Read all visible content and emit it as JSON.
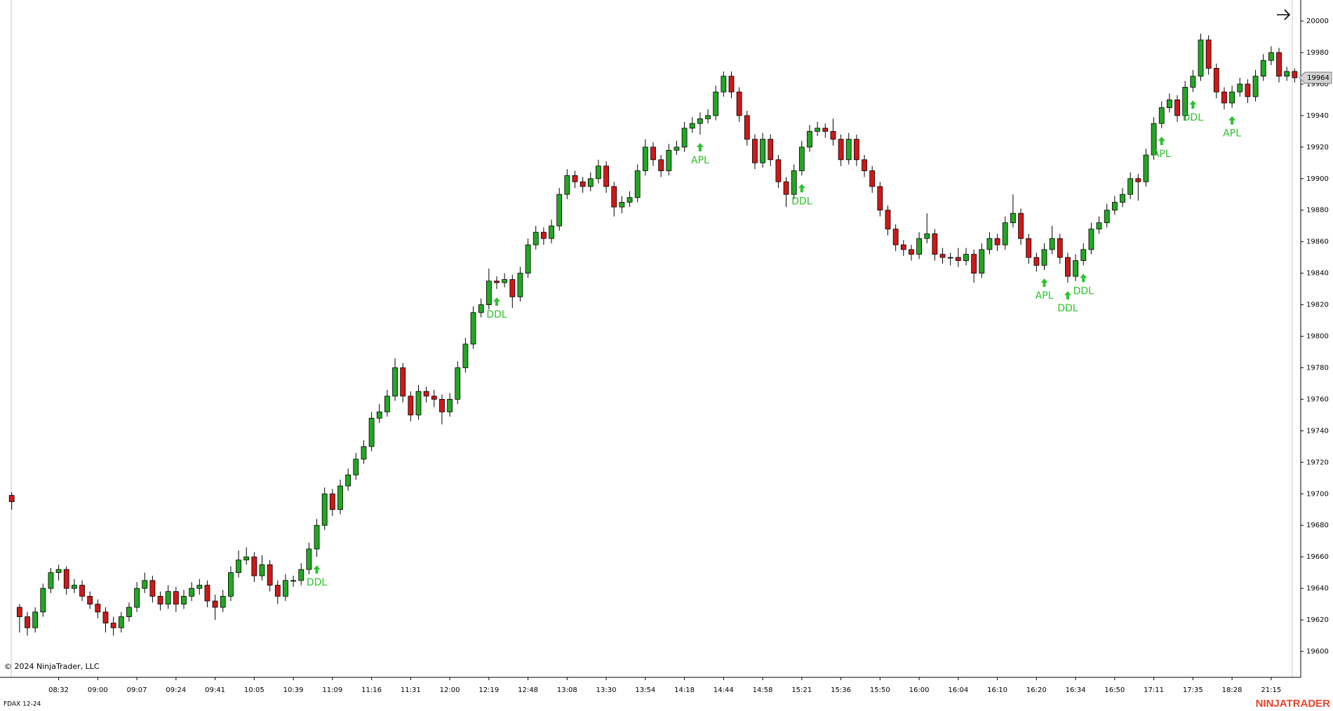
{
  "chart_data": {
    "type": "candlestick",
    "instrument": "FDAX 12-24",
    "copyright": "© 2024 NinjaTrader, LLC",
    "logo": "NINJATRADER",
    "up_color": "#22a822",
    "down_color": "#d01818",
    "signal_color": "#2ec22e",
    "ylim": [
      19590,
      20012
    ],
    "yticks": [
      19600,
      19620,
      19640,
      19660,
      19680,
      19700,
      19720,
      19740,
      19760,
      19780,
      19800,
      19820,
      19840,
      19860,
      19880,
      19900,
      19920,
      19940,
      19960,
      19980,
      20000
    ],
    "categories": [
      null,
      null,
      null,
      null,
      null,
      null,
      "08:32",
      null,
      null,
      null,
      null,
      "09:00",
      null,
      null,
      null,
      null,
      "09:07",
      null,
      null,
      null,
      null,
      "09:24",
      null,
      null,
      null,
      null,
      "09:41",
      null,
      null,
      null,
      null,
      "10:05",
      null,
      null,
      null,
      null,
      "10:39",
      null,
      null,
      null,
      null,
      "11:09",
      null,
      null,
      null,
      null,
      "11:16",
      null,
      null,
      null,
      null,
      "11:31",
      null,
      null,
      null,
      null,
      "12:00",
      null,
      null,
      null,
      null,
      "12:19",
      null,
      null,
      null,
      null,
      "12:48",
      null,
      null,
      null,
      null,
      "13:08",
      null,
      null,
      null,
      null,
      "13:30",
      null,
      null,
      null,
      null,
      "13:54",
      null,
      null,
      null,
      null,
      "14:18",
      null,
      null,
      null,
      null,
      "14:44",
      null,
      null,
      null,
      null,
      "14:58",
      null,
      null,
      null,
      null,
      "15:21",
      null,
      null,
      null,
      null,
      "15:36",
      null,
      null,
      null,
      null,
      "15:50",
      null,
      null,
      null,
      null,
      "16:00",
      null,
      null,
      null,
      null,
      "16:04",
      null,
      null,
      null,
      null,
      "16:10",
      null,
      null,
      null,
      null,
      "16:20",
      null,
      null,
      null,
      null,
      "16:34",
      null,
      null,
      null,
      null,
      "16:50",
      null,
      null,
      null,
      null,
      "17:11",
      null,
      null,
      null,
      null,
      "17:35",
      null,
      null,
      null,
      null,
      "18:28",
      null,
      null,
      null,
      null,
      "21:15",
      null,
      null,
      null
    ],
    "candles": [
      [
        19699,
        19701,
        19690,
        19695
      ],
      [
        19628,
        19630,
        19612,
        19622
      ],
      [
        19622,
        19625,
        19610,
        19615
      ],
      [
        19615,
        19628,
        19612,
        19625
      ],
      [
        19625,
        19643,
        19622,
        19640
      ],
      [
        19640,
        19653,
        19637,
        19650
      ],
      [
        19650,
        19655,
        19645,
        19652
      ],
      [
        19652,
        19654,
        19636,
        19640
      ],
      [
        19640,
        19646,
        19637,
        19642
      ],
      [
        19642,
        19645,
        19632,
        19635
      ],
      [
        19635,
        19638,
        19627,
        19630
      ],
      [
        19630,
        19633,
        19621,
        19625
      ],
      [
        19625,
        19628,
        19612,
        19618
      ],
      [
        19618,
        19622,
        19610,
        19615
      ],
      [
        19615,
        19625,
        19612,
        19622
      ],
      [
        19622,
        19631,
        19619,
        19628
      ],
      [
        19628,
        19644,
        19625,
        19640
      ],
      [
        19640,
        19650,
        19637,
        19645
      ],
      [
        19645,
        19648,
        19631,
        19635
      ],
      [
        19635,
        19638,
        19626,
        19630
      ],
      [
        19630,
        19642,
        19627,
        19638
      ],
      [
        19638,
        19641,
        19625,
        19630
      ],
      [
        19630,
        19639,
        19627,
        19635
      ],
      [
        19635,
        19644,
        19632,
        19640
      ],
      [
        19640,
        19646,
        19636,
        19642
      ],
      [
        19642,
        19645,
        19628,
        19632
      ],
      [
        19632,
        19636,
        19620,
        19628
      ],
      [
        19628,
        19639,
        19625,
        19635
      ],
      [
        19635,
        19654,
        19632,
        19650
      ],
      [
        19650,
        19664,
        19647,
        19658
      ],
      [
        19658,
        19666,
        19655,
        19660
      ],
      [
        19660,
        19663,
        19644,
        19648
      ],
      [
        19648,
        19661,
        19645,
        19655
      ],
      [
        19655,
        19658,
        19638,
        19642
      ],
      [
        19642,
        19645,
        19630,
        19635
      ],
      [
        19635,
        19649,
        19632,
        19645
      ],
      [
        19645,
        19648,
        19641,
        19645
      ],
      [
        19645,
        19656,
        19642,
        19652
      ],
      [
        19652,
        19669,
        19649,
        19665
      ],
      [
        19665,
        19684,
        19660,
        19680
      ],
      [
        19680,
        19704,
        19677,
        19700
      ],
      [
        19700,
        19703,
        19686,
        19690
      ],
      [
        19690,
        19709,
        19687,
        19705
      ],
      [
        19705,
        19716,
        19702,
        19712
      ],
      [
        19712,
        19726,
        19709,
        19722
      ],
      [
        19722,
        19734,
        19719,
        19730
      ],
      [
        19730,
        19752,
        19727,
        19748
      ],
      [
        19748,
        19757,
        19745,
        19752
      ],
      [
        19752,
        19766,
        19749,
        19762
      ],
      [
        19762,
        19786,
        19759,
        19780
      ],
      [
        19780,
        19783,
        19758,
        19762
      ],
      [
        19762,
        19765,
        19746,
        19750
      ],
      [
        19750,
        19769,
        19747,
        19765
      ],
      [
        19765,
        19768,
        19758,
        19762
      ],
      [
        19762,
        19766,
        19755,
        19760
      ],
      [
        19760,
        19763,
        19744,
        19752
      ],
      [
        19752,
        19764,
        19749,
        19760
      ],
      [
        19760,
        19784,
        19757,
        19780
      ],
      [
        19780,
        19799,
        19777,
        19795
      ],
      [
        19795,
        19819,
        19792,
        19815
      ],
      [
        19815,
        19824,
        19812,
        19820
      ],
      [
        19820,
        19843,
        19817,
        19835
      ],
      [
        19835,
        19838,
        19830,
        19834
      ],
      [
        19834,
        19840,
        19831,
        19836
      ],
      [
        19836,
        19839,
        19818,
        19825
      ],
      [
        19825,
        19844,
        19822,
        19840
      ],
      [
        19840,
        19862,
        19837,
        19858
      ],
      [
        19858,
        19870,
        19855,
        19866
      ],
      [
        19866,
        19869,
        19858,
        19862
      ],
      [
        19862,
        19874,
        19859,
        19870
      ],
      [
        19870,
        19894,
        19867,
        19890
      ],
      [
        19890,
        19906,
        19887,
        19902
      ],
      [
        19902,
        19905,
        19894,
        19898
      ],
      [
        19898,
        19901,
        19891,
        19895
      ],
      [
        19895,
        19904,
        19892,
        19900
      ],
      [
        19900,
        19912,
        19897,
        19908
      ],
      [
        19908,
        19911,
        19891,
        19895
      ],
      [
        19895,
        19898,
        19876,
        19882
      ],
      [
        19882,
        19889,
        19878,
        19885
      ],
      [
        19885,
        19892,
        19882,
        19888
      ],
      [
        19888,
        19909,
        19885,
        19905
      ],
      [
        19905,
        19925,
        19902,
        19920
      ],
      [
        19920,
        19923,
        19908,
        19912
      ],
      [
        19912,
        19915,
        19901,
        19905
      ],
      [
        19905,
        19922,
        19902,
        19918
      ],
      [
        19918,
        19924,
        19915,
        19920
      ],
      [
        19920,
        19936,
        19917,
        19932
      ],
      [
        19932,
        19939,
        19929,
        19935
      ],
      [
        19935,
        19942,
        19928,
        19938
      ],
      [
        19938,
        19944,
        19935,
        19940
      ],
      [
        19940,
        19959,
        19937,
        19955
      ],
      [
        19955,
        19968,
        19952,
        19965
      ],
      [
        19965,
        19968,
        19951,
        19955
      ],
      [
        19955,
        19958,
        19936,
        19940
      ],
      [
        19940,
        19943,
        19921,
        19925
      ],
      [
        19925,
        19928,
        19906,
        19910
      ],
      [
        19910,
        19929,
        19907,
        19925
      ],
      [
        19925,
        19928,
        19908,
        19912
      ],
      [
        19912,
        19915,
        19894,
        19898
      ],
      [
        19898,
        19901,
        19882,
        19890
      ],
      [
        19890,
        19909,
        19887,
        19905
      ],
      [
        19905,
        19924,
        19902,
        19920
      ],
      [
        19920,
        19934,
        19917,
        19930
      ],
      [
        19930,
        19936,
        19927,
        19932
      ],
      [
        19932,
        19935,
        19926,
        19930
      ],
      [
        19930,
        19938,
        19921,
        19925
      ],
      [
        19925,
        19928,
        19908,
        19912
      ],
      [
        19912,
        19929,
        19909,
        19925
      ],
      [
        19925,
        19928,
        19908,
        19912
      ],
      [
        19912,
        19915,
        19901,
        19905
      ],
      [
        19905,
        19908,
        19891,
        19895
      ],
      [
        19895,
        19898,
        19876,
        19880
      ],
      [
        19880,
        19883,
        19864,
        19868
      ],
      [
        19868,
        19871,
        19854,
        19858
      ],
      [
        19858,
        19861,
        19851,
        19855
      ],
      [
        19855,
        19858,
        19848,
        19852
      ],
      [
        19852,
        19866,
        19849,
        19862
      ],
      [
        19862,
        19878,
        19859,
        19865
      ],
      [
        19865,
        19868,
        19848,
        19852
      ],
      [
        19852,
        19856,
        19846,
        19850
      ],
      [
        19850,
        19853,
        19845,
        19850
      ],
      [
        19850,
        19856,
        19844,
        19848
      ],
      [
        19848,
        19856,
        19845,
        19852
      ],
      [
        19852,
        19855,
        19834,
        19840
      ],
      [
        19840,
        19859,
        19837,
        19855
      ],
      [
        19855,
        19866,
        19852,
        19862
      ],
      [
        19862,
        19865,
        19854,
        19858
      ],
      [
        19858,
        19876,
        19855,
        19872
      ],
      [
        19872,
        19890,
        19869,
        19878
      ],
      [
        19878,
        19881,
        19858,
        19862
      ],
      [
        19862,
        19865,
        19846,
        19850
      ],
      [
        19850,
        19853,
        19841,
        19845
      ],
      [
        19845,
        19859,
        19842,
        19855
      ],
      [
        19855,
        19870,
        19852,
        19862
      ],
      [
        19862,
        19865,
        19846,
        19850
      ],
      [
        19850,
        19853,
        19834,
        19838
      ],
      [
        19838,
        19852,
        19835,
        19848
      ],
      [
        19848,
        19859,
        19845,
        19855
      ],
      [
        19855,
        19872,
        19852,
        19868
      ],
      [
        19868,
        19876,
        19865,
        19872
      ],
      [
        19872,
        19884,
        19869,
        19880
      ],
      [
        19880,
        19889,
        19877,
        19885
      ],
      [
        19885,
        19894,
        19882,
        19890
      ],
      [
        19890,
        19904,
        19887,
        19900
      ],
      [
        19900,
        19903,
        19886,
        19898
      ],
      [
        19898,
        19919,
        19895,
        19915
      ],
      [
        19915,
        19939,
        19912,
        19935
      ],
      [
        19935,
        19949,
        19932,
        19945
      ],
      [
        19945,
        19954,
        19942,
        19950
      ],
      [
        19950,
        19953,
        19936,
        19940
      ],
      [
        19940,
        19962,
        19937,
        19958
      ],
      [
        19958,
        19969,
        19955,
        19965
      ],
      [
        19965,
        19992,
        19962,
        19988
      ],
      [
        19988,
        19991,
        19966,
        19970
      ],
      [
        19970,
        19973,
        19951,
        19955
      ],
      [
        19955,
        19958,
        19944,
        19948
      ],
      [
        19948,
        19959,
        19945,
        19955
      ],
      [
        19955,
        19964,
        19952,
        19960
      ],
      [
        19960,
        19963,
        19948,
        19952
      ],
      [
        19952,
        19969,
        19949,
        19965
      ],
      [
        19965,
        19979,
        19962,
        19975
      ],
      [
        19975,
        19984,
        19972,
        19980
      ],
      [
        19980,
        19983,
        19961,
        19965
      ],
      [
        19965,
        19971,
        19962,
        19968
      ],
      [
        19968,
        19970,
        19961,
        19964
      ]
    ],
    "signals": [
      null,
      null,
      null,
      null,
      null,
      null,
      null,
      null,
      null,
      null,
      null,
      null,
      null,
      null,
      null,
      null,
      null,
      null,
      null,
      null,
      null,
      null,
      null,
      null,
      null,
      null,
      null,
      null,
      null,
      null,
      null,
      null,
      null,
      null,
      null,
      null,
      null,
      null,
      null,
      "DDL",
      null,
      null,
      null,
      null,
      null,
      null,
      null,
      null,
      null,
      null,
      null,
      null,
      null,
      null,
      null,
      null,
      null,
      null,
      null,
      null,
      null,
      null,
      "DDL",
      null,
      null,
      null,
      null,
      null,
      null,
      null,
      null,
      null,
      null,
      null,
      null,
      null,
      null,
      null,
      null,
      null,
      null,
      null,
      null,
      null,
      null,
      null,
      null,
      null,
      "APL",
      null,
      null,
      null,
      null,
      null,
      null,
      null,
      null,
      null,
      null,
      null,
      null,
      "DDL",
      null,
      null,
      null,
      null,
      null,
      null,
      null,
      null,
      null,
      null,
      null,
      null,
      null,
      null,
      null,
      null,
      null,
      null,
      null,
      null,
      null,
      null,
      null,
      null,
      null,
      null,
      null,
      null,
      null,
      null,
      "APL",
      null,
      null,
      "DDL",
      null,
      "DDL",
      null,
      null,
      null,
      null,
      null,
      null,
      null,
      null,
      null,
      "APL",
      null,
      null,
      null,
      "DDL",
      null,
      null,
      null,
      null,
      "APL",
      null,
      null,
      null,
      null,
      null,
      null,
      null,
      null
    ]
  }
}
